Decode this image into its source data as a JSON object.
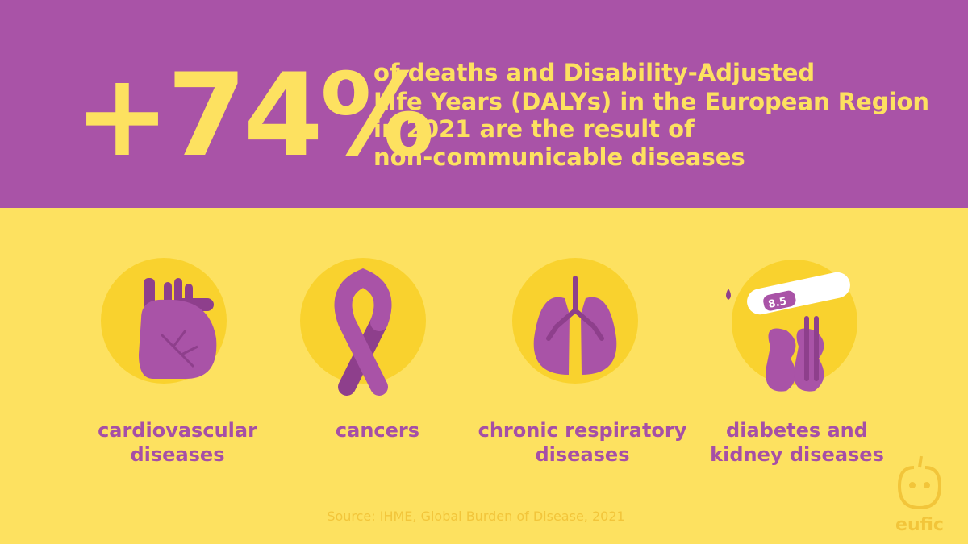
{
  "headline": {
    "stat": "+74%",
    "lines": [
      "of deaths and Disability-Adjusted",
      "Life Years (DALYs) in the European Region",
      "in 2021 are the result of",
      "non-communicable diseases"
    ]
  },
  "items": [
    {
      "label": [
        "cardiovascular",
        "diseases"
      ]
    },
    {
      "label": [
        "cancers"
      ]
    },
    {
      "label": [
        "chronic respiratory",
        "diseases"
      ]
    },
    {
      "label": [
        "diabetes and",
        "kidney diseases"
      ],
      "reading": "8.5"
    }
  ],
  "source": "Source: IHME, Global Burden of Disease, 2021",
  "logo": "eufic"
}
